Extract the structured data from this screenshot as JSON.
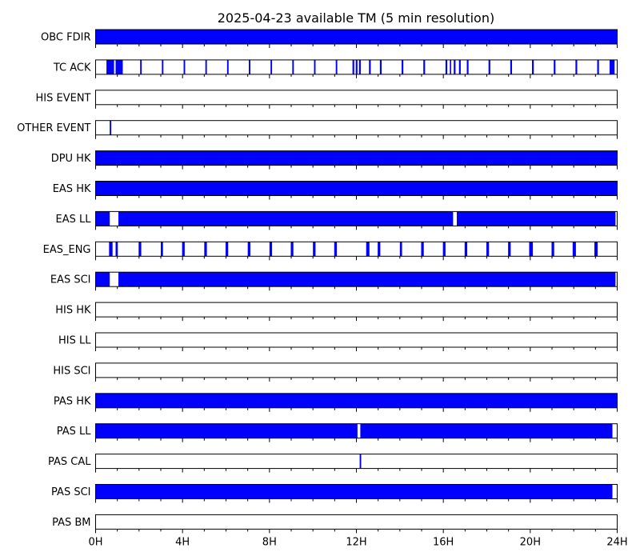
{
  "chart_data": {
    "type": "timeline",
    "title": "2025-04-23 available TM (5 min resolution)",
    "x_unit": "hours",
    "xlim": [
      0,
      24
    ],
    "x_ticks": [
      0,
      4,
      8,
      12,
      16,
      20,
      24
    ],
    "x_tick_labels": [
      "0H",
      "4H",
      "8H",
      "12H",
      "16H",
      "20H",
      "24H"
    ],
    "x_minor_step": 1,
    "bar_color": "#0000ff",
    "edge_color": "#000000",
    "rows": [
      {
        "name": "OBC FDIR",
        "intervals": [
          [
            0,
            24
          ]
        ]
      },
      {
        "name": "TC ACK",
        "intervals": [
          [
            0.5,
            0.85
          ],
          [
            0.92,
            1.25
          ],
          [
            2.05,
            2.12
          ],
          [
            3.05,
            3.12
          ],
          [
            4.05,
            4.12
          ],
          [
            5.05,
            5.12
          ],
          [
            6.05,
            6.12
          ],
          [
            7.05,
            7.12
          ],
          [
            8.05,
            8.12
          ],
          [
            9.05,
            9.12
          ],
          [
            10.05,
            10.12
          ],
          [
            11.05,
            11.12
          ],
          [
            11.82,
            11.9
          ],
          [
            11.97,
            12.05
          ],
          [
            12.12,
            12.2
          ],
          [
            12.58,
            12.66
          ],
          [
            13.08,
            13.16
          ],
          [
            14.08,
            14.16
          ],
          [
            15.08,
            15.16
          ],
          [
            16.1,
            16.18
          ],
          [
            16.3,
            16.36
          ],
          [
            16.48,
            16.56
          ],
          [
            16.72,
            16.8
          ],
          [
            17.08,
            17.16
          ],
          [
            18.08,
            18.16
          ],
          [
            19.08,
            19.16
          ],
          [
            20.08,
            20.16
          ],
          [
            21.08,
            21.16
          ],
          [
            22.08,
            22.16
          ],
          [
            23.08,
            23.16
          ],
          [
            23.65,
            23.88
          ]
        ]
      },
      {
        "name": "HIS EVENT",
        "intervals": []
      },
      {
        "name": "OTHER EVENT",
        "intervals": [
          [
            0.65,
            0.72
          ]
        ]
      },
      {
        "name": "DPU HK",
        "intervals": [
          [
            0,
            24
          ]
        ]
      },
      {
        "name": "EAS HK",
        "intervals": [
          [
            0,
            24
          ]
        ]
      },
      {
        "name": "EAS LL",
        "intervals": [
          [
            0,
            0.65
          ],
          [
            1.05,
            16.45
          ],
          [
            16.62,
            23.92
          ]
        ]
      },
      {
        "name": "EAS_ENG",
        "intervals": [
          [
            0.62,
            0.78
          ],
          [
            0.92,
            1.02
          ],
          [
            1.98,
            2.1
          ],
          [
            3.0,
            3.1
          ],
          [
            3.98,
            4.1
          ],
          [
            5.0,
            5.12
          ],
          [
            5.98,
            6.1
          ],
          [
            7.0,
            7.12
          ],
          [
            8.0,
            8.12
          ],
          [
            8.98,
            9.1
          ],
          [
            10.0,
            10.12
          ],
          [
            10.98,
            11.1
          ],
          [
            12.45,
            12.6
          ],
          [
            12.98,
            13.1
          ],
          [
            14.0,
            14.1
          ],
          [
            14.98,
            15.1
          ],
          [
            15.98,
            16.1
          ],
          [
            16.98,
            17.1
          ],
          [
            17.98,
            18.1
          ],
          [
            18.98,
            19.1
          ],
          [
            19.95,
            20.12
          ],
          [
            20.98,
            21.1
          ],
          [
            21.95,
            22.1
          ],
          [
            22.95,
            23.1
          ]
        ]
      },
      {
        "name": "EAS SCI",
        "intervals": [
          [
            0,
            0.65
          ],
          [
            1.05,
            23.92
          ]
        ]
      },
      {
        "name": "HIS HK",
        "intervals": []
      },
      {
        "name": "HIS LL",
        "intervals": []
      },
      {
        "name": "HIS SCI",
        "intervals": []
      },
      {
        "name": "PAS HK",
        "intervals": [
          [
            0,
            24
          ]
        ]
      },
      {
        "name": "PAS LL",
        "intervals": [
          [
            0,
            12.05
          ],
          [
            12.18,
            23.78
          ]
        ]
      },
      {
        "name": "PAS CAL",
        "intervals": [
          [
            12.15,
            12.22
          ]
        ]
      },
      {
        "name": "PAS SCI",
        "intervals": [
          [
            0,
            23.78
          ]
        ]
      },
      {
        "name": "PAS BM",
        "intervals": []
      }
    ]
  }
}
